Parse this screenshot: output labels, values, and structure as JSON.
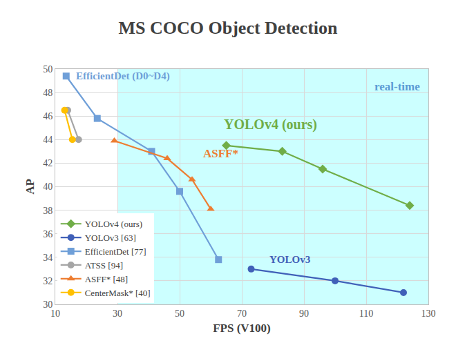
{
  "chart_data": {
    "type": "scatter",
    "title": "MS COCO Object Detection",
    "x_label": "FPS (V100)",
    "y_label": "AP",
    "xlim": [
      10,
      130
    ],
    "xticks": [
      10,
      30,
      50,
      70,
      90,
      110,
      130
    ],
    "ylim": [
      30,
      50
    ],
    "yticks": [
      30,
      32,
      34,
      36,
      38,
      40,
      42,
      44,
      46,
      48,
      50
    ],
    "grid": true,
    "legend": "lower left",
    "line_style": "solid",
    "shaded_region": {
      "label": "real-time",
      "x": [
        30,
        130
      ],
      "color": "#ccffff"
    },
    "series": [
      {
        "name": "YOLOv4 (ours)",
        "annotation": "YOLOv4 (ours)",
        "color": "#70ad47",
        "marker": "diamond",
        "x": [
          65,
          83,
          96,
          124
        ],
        "values": [
          43.5,
          43.0,
          41.5,
          38.4
        ]
      },
      {
        "name": "YOLOv3 [63]",
        "annotation": "YOLOv3",
        "color": "#4060b8",
        "marker": "circle",
        "x": [
          73,
          100,
          122
        ],
        "values": [
          33.0,
          32.0,
          31.0
        ]
      },
      {
        "name": "EfficientDet [77]",
        "annotation": "EfficientDet (D0~D4)",
        "color": "#6f9fd8",
        "marker": "square",
        "x": [
          13.5,
          23.5,
          41,
          50,
          62.5
        ],
        "values": [
          49.4,
          45.8,
          43.0,
          39.6,
          33.8
        ]
      },
      {
        "name": "ATSS [94]",
        "color": "#a5a5a5",
        "marker": "circle",
        "x": [
          14,
          17.5
        ],
        "values": [
          46.5,
          44.0
        ]
      },
      {
        "name": "ASFF* [48]",
        "annotation": "ASFF*",
        "color": "#ed7d31",
        "marker": "triangle-up",
        "x": [
          29,
          46,
          54,
          60
        ],
        "values": [
          43.9,
          42.4,
          40.6,
          38.1
        ]
      },
      {
        "name": "CenterMask* [40]",
        "color": "#ffc000",
        "marker": "circle",
        "x": [
          13,
          15.5
        ],
        "values": [
          46.5,
          44.0
        ]
      }
    ]
  }
}
